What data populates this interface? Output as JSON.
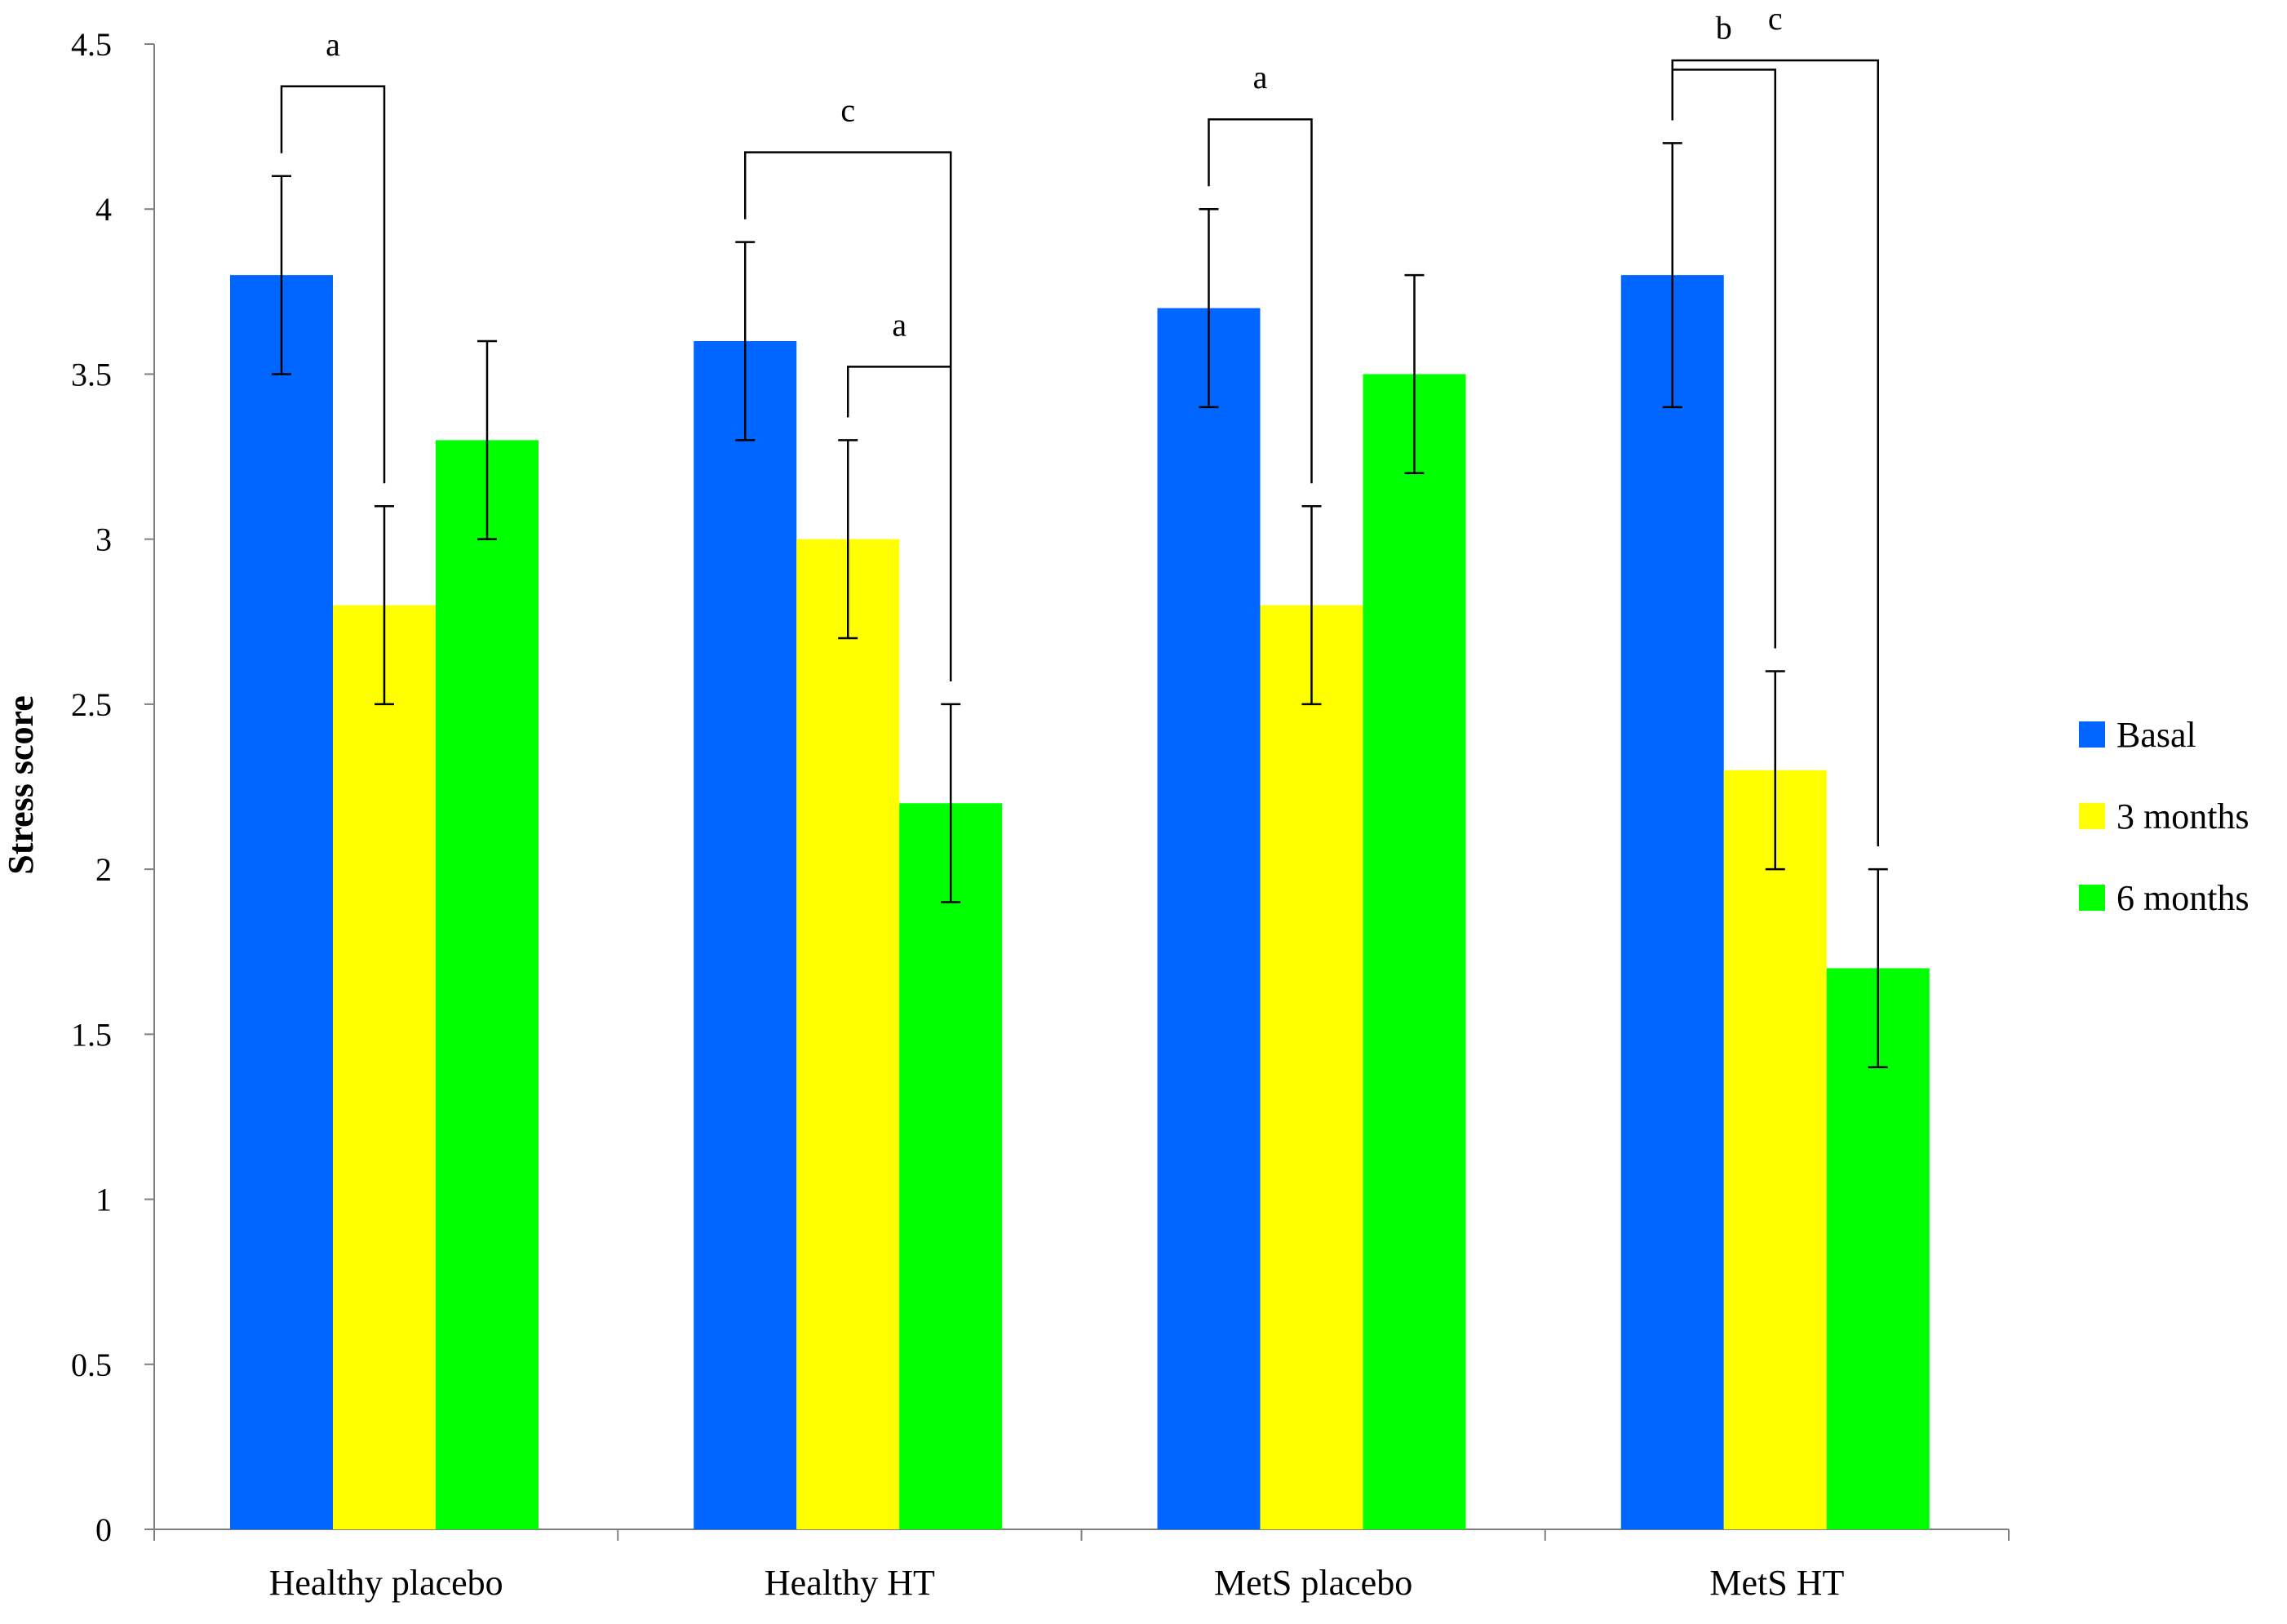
{
  "chart_data": {
    "type": "bar",
    "title": "",
    "xlabel": "",
    "ylabel": "Stress score",
    "ylim": [
      0,
      4.5
    ],
    "yticks": [
      0,
      0.5,
      1,
      1.5,
      2,
      2.5,
      3,
      3.5,
      4,
      4.5
    ],
    "ytick_labels": [
      "0",
      "0.5",
      "1",
      "1.5",
      "2",
      "2.5",
      "3",
      "3.5",
      "4",
      "4.5"
    ],
    "grid": false,
    "legend_position": "right",
    "categories": [
      "Healthy placebo",
      "Healthy HT",
      "MetS placebo",
      "MetS HT"
    ],
    "series": [
      {
        "name": "Basal",
        "color": "#0066FF",
        "values": [
          3.8,
          3.6,
          3.7,
          3.8
        ],
        "errors": [
          0.3,
          0.3,
          0.3,
          0.4
        ]
      },
      {
        "name": "3 months",
        "color": "#FFFF00",
        "values": [
          2.8,
          3.0,
          2.8,
          2.3
        ],
        "errors": [
          0.3,
          0.3,
          0.3,
          0.3
        ]
      },
      {
        "name": "6 months",
        "color": "#00FF00",
        "values": [
          3.3,
          2.2,
          3.5,
          1.7
        ],
        "errors": [
          0.3,
          0.3,
          0.3,
          0.3
        ]
      }
    ],
    "significance": [
      {
        "category": 0,
        "from_series": 0,
        "to_series": 1,
        "label": "a"
      },
      {
        "category": 1,
        "from_series": 0,
        "to_series": 2,
        "label": "c"
      },
      {
        "category": 1,
        "from_series": 1,
        "to_series": 2,
        "label": "a"
      },
      {
        "category": 2,
        "from_series": 0,
        "to_series": 1,
        "label": "a"
      },
      {
        "category": 3,
        "from_series": 0,
        "to_series": 2,
        "label": "c"
      },
      {
        "category": 3,
        "from_series": 0,
        "to_series": 1,
        "label": "b"
      }
    ]
  }
}
